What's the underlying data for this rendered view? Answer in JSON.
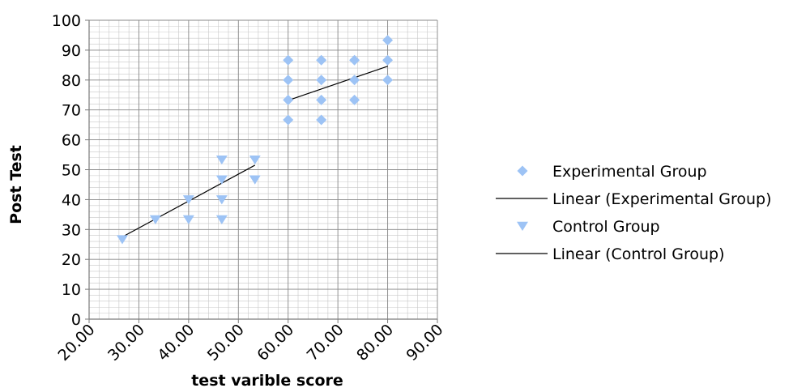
{
  "chart_data": {
    "type": "scatter",
    "xlabel": "test  varible score",
    "ylabel": "Post  Test",
    "xlim": [
      20,
      90
    ],
    "ylim": [
      0,
      100
    ],
    "x_tick_labels": [
      "20.00",
      "30.00",
      "40.00",
      "50.00",
      "60.00",
      "70.00",
      "80.00",
      "90.00"
    ],
    "x_ticks": [
      20,
      30,
      40,
      50,
      60,
      70,
      80,
      90
    ],
    "y_tick_labels": [
      "0",
      "10",
      "20",
      "30",
      "40",
      "50",
      "60",
      "70",
      "80",
      "90",
      "100"
    ],
    "y_ticks": [
      0,
      10,
      20,
      30,
      40,
      50,
      60,
      70,
      80,
      90,
      100
    ],
    "grid": true,
    "legend_position": "right",
    "series": [
      {
        "name": "Experimental Group",
        "marker": "diamond",
        "color": "#9DC3F5",
        "points": [
          [
            60,
            66.67
          ],
          [
            60,
            73.33
          ],
          [
            60,
            80
          ],
          [
            60,
            86.67
          ],
          [
            66.67,
            66.67
          ],
          [
            66.67,
            73.33
          ],
          [
            66.67,
            80
          ],
          [
            66.67,
            86.67
          ],
          [
            73.33,
            73.33
          ],
          [
            73.33,
            80
          ],
          [
            73.33,
            86.67
          ],
          [
            80,
            80
          ],
          [
            80,
            86.67
          ],
          [
            80,
            93.33
          ]
        ]
      },
      {
        "name": "Control Group",
        "marker": "triangle-down",
        "color": "#9DC3F5",
        "points": [
          [
            26.67,
            26.67
          ],
          [
            33.33,
            33.33
          ],
          [
            40,
            33.33
          ],
          [
            40,
            40
          ],
          [
            46.67,
            33.33
          ],
          [
            46.67,
            40
          ],
          [
            46.67,
            46.67
          ],
          [
            46.67,
            53.33
          ],
          [
            53.33,
            46.67
          ],
          [
            53.33,
            53.33
          ]
        ]
      }
    ],
    "trendlines": [
      {
        "name": "Linear (Experimental Group)",
        "color": "#000000",
        "x": [
          60,
          80
        ],
        "y": [
          73.2,
          84.6
        ]
      },
      {
        "name": "Linear (Control Group)",
        "color": "#000000",
        "x": [
          26.67,
          53.33
        ],
        "y": [
          27.5,
          51.5
        ]
      }
    ],
    "legend": [
      {
        "label": "Experimental Group",
        "kind": "marker",
        "marker": "diamond"
      },
      {
        "label": "Linear (Experimental Group)",
        "kind": "line"
      },
      {
        "label": "Control Group",
        "kind": "marker",
        "marker": "triangle-down"
      },
      {
        "label": "Linear (Control Group)",
        "kind": "line"
      }
    ]
  }
}
